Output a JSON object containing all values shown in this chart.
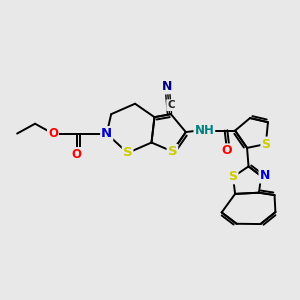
{
  "background_color": "#e8e8e8",
  "figure_size": [
    3.0,
    3.0
  ],
  "dpi": 100,
  "atom_colors": {
    "N": "#0000cc",
    "O": "#ff0000",
    "S": "#cccc00",
    "C": "#000000",
    "H": "#008080",
    "N_dark": "#000080"
  },
  "bond_color": "#000000",
  "bond_width": 1.4,
  "font_size_atoms": 8.5
}
